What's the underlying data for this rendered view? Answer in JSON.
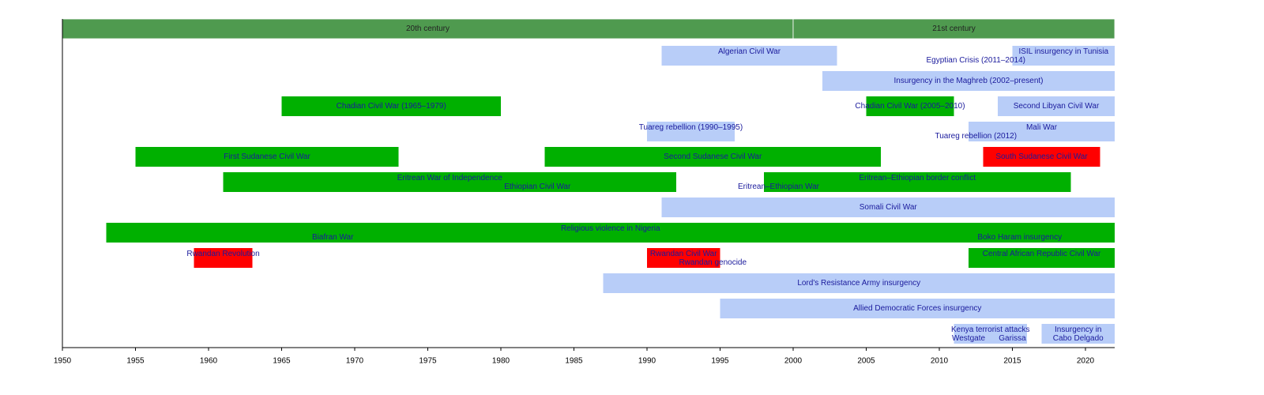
{
  "chart_data": {
    "type": "timeline",
    "xlim": [
      1950,
      2022
    ],
    "xticks": [
      1950,
      1955,
      1960,
      1965,
      1970,
      1975,
      1980,
      1985,
      1990,
      1995,
      2000,
      2005,
      2010,
      2015,
      2020
    ],
    "header_color": "#4f9a4f",
    "headers": [
      {
        "label": "20th century",
        "start": 1950,
        "end": 2000
      },
      {
        "label": "21st century",
        "start": 2000,
        "end": 2022
      }
    ],
    "events": [
      {
        "label": "Algerian Civil War",
        "row": 0,
        "start": 1991,
        "end": 2003,
        "color": "#b8cdf8"
      },
      {
        "label": "Egyptian Crisis (2011–2014)",
        "row": 0,
        "start": 2011,
        "end": 2014,
        "color": null
      },
      {
        "label": "ISIL insurgency in Tunisia",
        "row": 0,
        "start": 2015,
        "end": 2022,
        "color": "#b8cdf8"
      },
      {
        "label": "Insurgency in the Maghreb (2002–present)",
        "row": 1,
        "start": 2002,
        "end": 2022,
        "color": "#b8cdf8"
      },
      {
        "label": "Chadian Civil War (1965–1979)",
        "row": 2,
        "start": 1965,
        "end": 1980,
        "color": "#00b000"
      },
      {
        "label": "Chadian Civil War (2005–2010)",
        "row": 2,
        "start": 2005,
        "end": 2011,
        "color": "#00b000"
      },
      {
        "label": "Second Libyan Civil War",
        "row": 2,
        "start": 2014,
        "end": 2022,
        "color": "#b8cdf8"
      },
      {
        "label": "Tuareg rebellion (1990–1995)",
        "row": 3,
        "start": 1990,
        "end": 1996,
        "color": "#b8cdf8"
      },
      {
        "label": "Mali War",
        "row": 3,
        "start": 2012,
        "end": 2022,
        "color": "#b8cdf8"
      },
      {
        "label": "Tuareg rebellion (2012)",
        "row": 3,
        "start": 2012,
        "end": 2013,
        "color": null
      },
      {
        "label": "First Sudanese Civil War",
        "row": 4,
        "start": 1955,
        "end": 1973,
        "color": "#00b000"
      },
      {
        "label": "Second Sudanese Civil War",
        "row": 4,
        "start": 1983,
        "end": 2006,
        "color": "#00b000"
      },
      {
        "label": "South Sudanese Civil War",
        "row": 4,
        "start": 2013,
        "end": 2021,
        "color": "#ff0000"
      },
      {
        "label": "Eritrean War of Independence",
        "row": 5,
        "start": 1961,
        "end": 1992,
        "color": "#00b000"
      },
      {
        "label": "Ethiopian Civil War",
        "row": 5,
        "start": 1974,
        "end": 1991,
        "color": null
      },
      {
        "label": "Eritrean–Ethiopian War",
        "row": 5,
        "start": 1998,
        "end": 2000,
        "color": null
      },
      {
        "label": "Eritrean–Ethiopian border conflict",
        "row": 5,
        "start": 1998,
        "end": 2019,
        "color": "#00b000"
      },
      {
        "label": "Somali Civil War",
        "row": 6,
        "start": 1991,
        "end": 2022,
        "color": "#b8cdf8"
      },
      {
        "label": "Religious violence in Nigeria",
        "row": 7,
        "start": 1953,
        "end": 2022,
        "color": "#00b000"
      },
      {
        "label": "Biafran War",
        "row": 7,
        "start": 1967,
        "end": 1970,
        "color": null
      },
      {
        "label": "Boko Haram insurgency",
        "row": 7,
        "start": 2009,
        "end": 2022,
        "color": null
      },
      {
        "label": "Rwandan Revolution",
        "row": 8,
        "start": 1959,
        "end": 1963,
        "color": "#ff0000"
      },
      {
        "label": "Rwandan Civil War",
        "row": 8,
        "start": 1990,
        "end": 1995,
        "color": "#ff0000"
      },
      {
        "label": "Rwandan genocide",
        "row": 8,
        "start": 1994,
        "end": 1995,
        "color": null
      },
      {
        "label": "Central African Republic Civil War",
        "row": 8,
        "start": 2012,
        "end": 2022,
        "color": "#00b000"
      },
      {
        "label": "Lord's Resistance Army insurgency",
        "row": 9,
        "start": 1987,
        "end": 2022,
        "color": "#b8cdf8"
      },
      {
        "label": "Allied Democratic Forces insurgency",
        "row": 10,
        "start": 1995,
        "end": 2022,
        "color": "#b8cdf8"
      },
      {
        "label": "Kenya terrorist attacks",
        "row": 11,
        "start": 2011,
        "end": 2016,
        "color": "#b8cdf8"
      },
      {
        "label": "Westgate",
        "row": 11,
        "start": 2011,
        "end": 2013,
        "color": null
      },
      {
        "label": "Garissa",
        "row": 11,
        "start": 2014,
        "end": 2016,
        "color": null
      },
      {
        "label": [
          "Insurgency in",
          "Cabo Delgado"
        ],
        "row": 11,
        "start": 2017,
        "end": 2022,
        "color": "#b8cdf8"
      }
    ]
  }
}
